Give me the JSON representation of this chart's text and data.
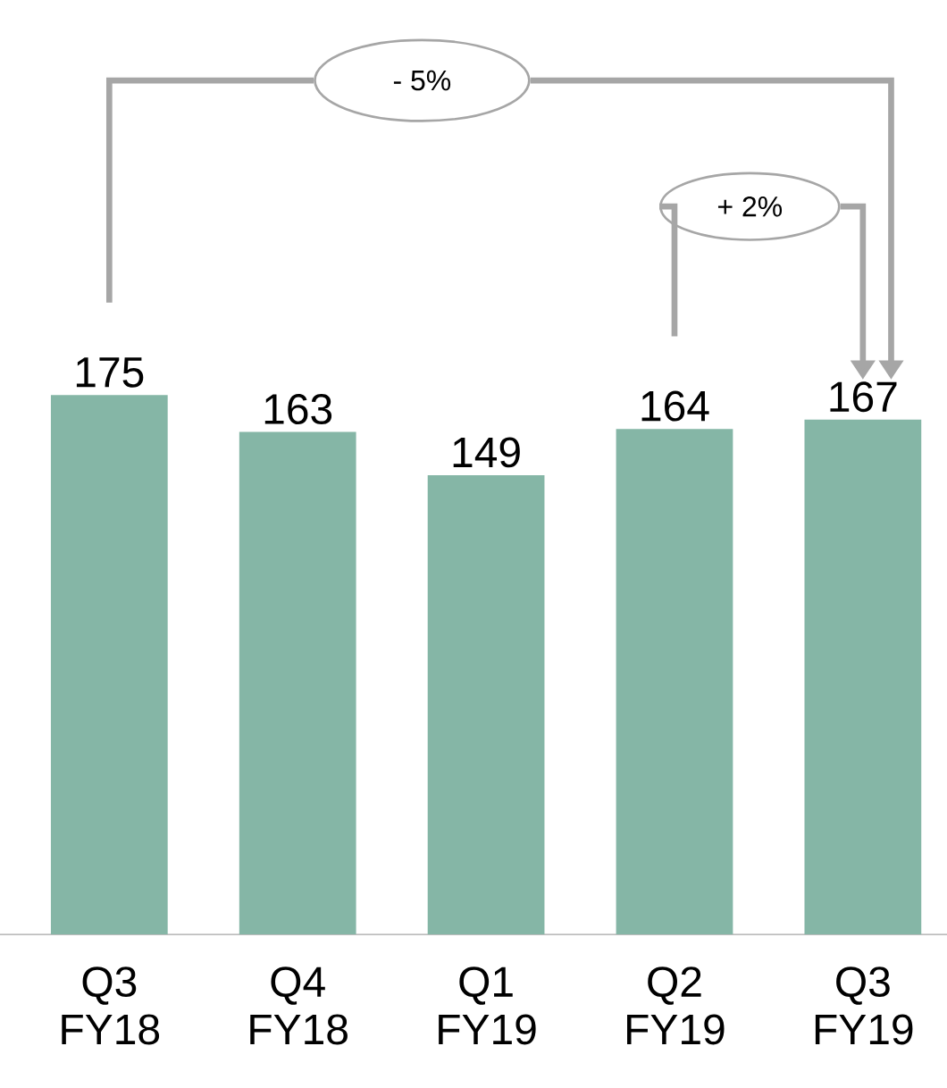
{
  "chart_data": {
    "type": "bar",
    "categories": [
      "Q3 FY18",
      "Q4 FY18",
      "Q1 FY19",
      "Q2 FY19",
      "Q3 FY19"
    ],
    "values": [
      175,
      163,
      149,
      164,
      167
    ],
    "color": "#85b6a6",
    "data_labels": true,
    "annotations": [
      "- 5%",
      "+ 2%"
    ]
  }
}
